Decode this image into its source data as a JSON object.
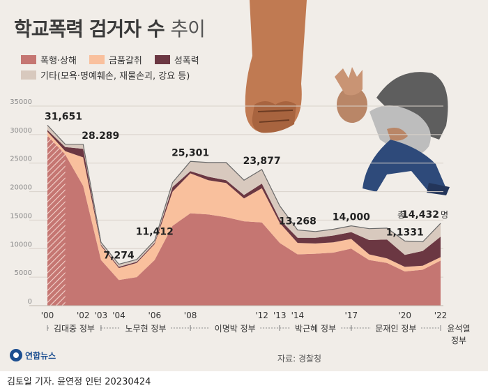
{
  "title": {
    "main": "학교폭력 검거자 수",
    "sub": "추이"
  },
  "legend": [
    {
      "label": "폭행·상해",
      "color": "#c57672"
    },
    {
      "label": "금품갈취",
      "color": "#f9c09d"
    },
    {
      "label": "성폭력",
      "color": "#6b3742"
    },
    {
      "label": "기타(모욕·명예훼손, 재물손괴, 강요 등)",
      "color": "#d8c9be"
    }
  ],
  "source": "자료: 경찰청",
  "logo": "연합뉴스",
  "credit": "김토일 기자. 윤연정 인턴  20230424",
  "chart_data": {
    "type": "area",
    "stacked": true,
    "x": [
      2000,
      2001,
      2002,
      2003,
      2004,
      2005,
      2006,
      2007,
      2008,
      2009,
      2010,
      2011,
      2012,
      2013,
      2014,
      2015,
      2016,
      2017,
      2018,
      2019,
      2020,
      2021,
      2022
    ],
    "series": [
      {
        "name": "폭행·상해",
        "values": [
          29800,
          26500,
          21000,
          8000,
          4500,
          5000,
          8000,
          14000,
          16200,
          16000,
          15500,
          14800,
          14600,
          11000,
          9000,
          9100,
          9300,
          10000,
          8000,
          7500,
          6000,
          6300,
          7900
        ]
      },
      {
        "name": "금품갈취",
        "values": [
          700,
          600,
          5000,
          2500,
          2100,
          2500,
          2800,
          6000,
          7000,
          6000,
          6000,
          4000,
          6000,
          3500,
          2000,
          1800,
          1800,
          1700,
          1000,
          800,
          800,
          700,
          600
        ]
      },
      {
        "name": "성폭력",
        "values": [
          300,
          700,
          1500,
          200,
          200,
          200,
          200,
          800,
          400,
          600,
          500,
          600,
          800,
          600,
          900,
          1000,
          1200,
          1200,
          2500,
          3300,
          2100,
          2600,
          3600
        ]
      },
      {
        "name": "기타(모욕·명예훼손, 재물손괴, 강요 등)",
        "values": [
          851,
          500,
          789,
          400,
          474,
          400,
          412,
          800,
          1701,
          2500,
          3100,
          2600,
          2477,
          2400,
          1368,
          1100,
          1100,
          1100,
          2000,
          2000,
          2431,
          1600,
          2332
        ]
      }
    ],
    "totals_labels": [
      {
        "x": 2000,
        "text": "31,651"
      },
      {
        "x": 2002,
        "text": "28.289"
      },
      {
        "x": 2004,
        "text": "7,274"
      },
      {
        "x": 2006,
        "text": "11,412"
      },
      {
        "x": 2008,
        "text": "25,301"
      },
      {
        "x": 2012,
        "text": "23,877"
      },
      {
        "x": 2014,
        "text": "13,268"
      },
      {
        "x": 2017,
        "text": "14,000"
      },
      {
        "x": 2020,
        "text": "1,1331"
      },
      {
        "x": 2022,
        "text": "14,432",
        "prefix": "총",
        "suffix": "명"
      }
    ],
    "yticks": [
      0,
      5000,
      10000,
      15000,
      20000,
      25000,
      30000,
      35000
    ],
    "ylim": [
      0,
      35000
    ],
    "xticks": [
      {
        "x": 2000,
        "label": "'00"
      },
      {
        "x": 2002,
        "label": "'02"
      },
      {
        "x": 2003,
        "label": "'03"
      },
      {
        "x": 2004,
        "label": "'04"
      },
      {
        "x": 2006,
        "label": "'06"
      },
      {
        "x": 2008,
        "label": "'08"
      },
      {
        "x": 2012,
        "label": "'12"
      },
      {
        "x": 2013,
        "label": "'13"
      },
      {
        "x": 2014,
        "label": "'14"
      },
      {
        "x": 2017,
        "label": "'17"
      },
      {
        "x": 2020,
        "label": "'20"
      },
      {
        "x": 2022,
        "label": "'22"
      }
    ],
    "governments": [
      {
        "label": "김대중 정부",
        "from": 2000,
        "to": 2003
      },
      {
        "label": "노무현 정부",
        "from": 2003,
        "to": 2008
      },
      {
        "label": "이명박 정부",
        "from": 2008,
        "to": 2013
      },
      {
        "label": "박근혜 정부",
        "from": 2013,
        "to": 2017
      },
      {
        "label": "문재인 정부",
        "from": 2017,
        "to": 2022
      },
      {
        "label": "윤석열 정부",
        "from": 2022,
        "to": 2022
      }
    ],
    "hatched_range": [
      2000,
      2001
    ]
  }
}
